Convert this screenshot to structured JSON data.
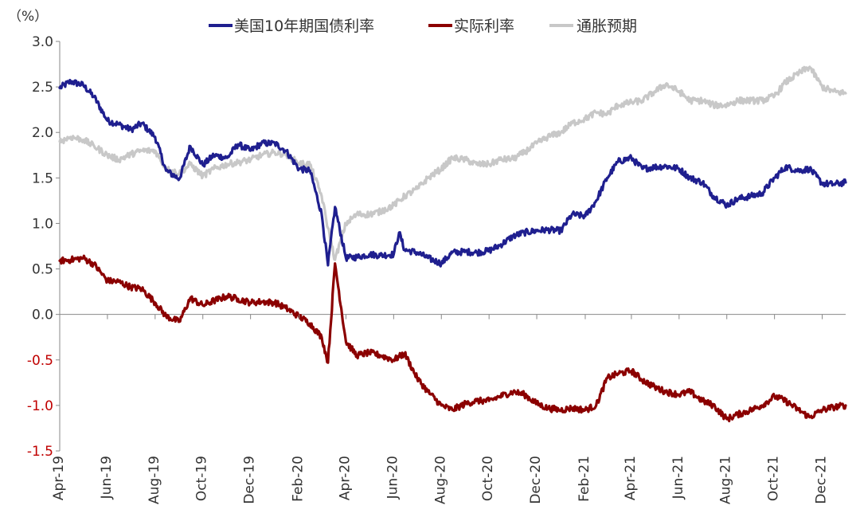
{
  "chart_data": {
    "type": "line",
    "unit_label": "（%）",
    "ylim": [
      -1.5,
      3.0
    ],
    "yticks": [
      "3.0",
      "2.5",
      "2.0",
      "1.5",
      "1.0",
      "0.5",
      "0.0",
      "-0.5",
      "-1.0",
      "-1.5"
    ],
    "ytick_values": [
      3.0,
      2.5,
      2.0,
      1.5,
      1.0,
      0.5,
      0.0,
      -0.5,
      -1.0,
      -1.5
    ],
    "negative_tick_color": "#c00000",
    "positive_tick_color": "#333333",
    "xlim": [
      "2019-04-01",
      "2021-12-31"
    ],
    "xtick_labels": [
      "Apr-19",
      "Jun-19",
      "Aug-19",
      "Oct-19",
      "Dec-19",
      "Feb-20",
      "Apr-20",
      "Jun-20",
      "Aug-20",
      "Oct-20",
      "Dec-20",
      "Feb-21",
      "Apr-21",
      "Jun-21",
      "Aug-21",
      "Oct-21",
      "Dec-21"
    ],
    "xtick_dates": [
      "2019-04-01",
      "2019-06-01",
      "2019-08-01",
      "2019-10-01",
      "2019-12-01",
      "2020-02-01",
      "2020-04-01",
      "2020-06-01",
      "2020-08-01",
      "2020-10-01",
      "2020-12-01",
      "2021-02-01",
      "2021-04-01",
      "2021-06-01",
      "2021-08-01",
      "2021-10-01",
      "2021-12-01"
    ],
    "legend_position": "top",
    "grid": false,
    "series": [
      {
        "name": "美国10年期国债利率",
        "color": "#1f1f8f",
        "points": [
          [
            "2019-04-01",
            2.49
          ],
          [
            "2019-04-15",
            2.56
          ],
          [
            "2019-05-01",
            2.52
          ],
          [
            "2019-05-15",
            2.39
          ],
          [
            "2019-06-01",
            2.13
          ],
          [
            "2019-06-15",
            2.09
          ],
          [
            "2019-07-01",
            2.03
          ],
          [
            "2019-07-15",
            2.1
          ],
          [
            "2019-08-01",
            1.95
          ],
          [
            "2019-08-15",
            1.58
          ],
          [
            "2019-09-01",
            1.49
          ],
          [
            "2019-09-15",
            1.85
          ],
          [
            "2019-10-01",
            1.64
          ],
          [
            "2019-10-15",
            1.75
          ],
          [
            "2019-11-01",
            1.72
          ],
          [
            "2019-11-15",
            1.87
          ],
          [
            "2019-12-01",
            1.8
          ],
          [
            "2019-12-15",
            1.88
          ],
          [
            "2020-01-01",
            1.88
          ],
          [
            "2020-01-15",
            1.8
          ],
          [
            "2020-02-01",
            1.6
          ],
          [
            "2020-02-15",
            1.58
          ],
          [
            "2020-03-01",
            1.1
          ],
          [
            "2020-03-09",
            0.54
          ],
          [
            "2020-03-18",
            1.18
          ],
          [
            "2020-04-01",
            0.62
          ],
          [
            "2020-04-15",
            0.63
          ],
          [
            "2020-05-01",
            0.66
          ],
          [
            "2020-05-15",
            0.65
          ],
          [
            "2020-06-01",
            0.66
          ],
          [
            "2020-06-08",
            0.9
          ],
          [
            "2020-06-15",
            0.71
          ],
          [
            "2020-07-01",
            0.68
          ],
          [
            "2020-07-15",
            0.62
          ],
          [
            "2020-08-01",
            0.56
          ],
          [
            "2020-08-15",
            0.68
          ],
          [
            "2020-09-01",
            0.69
          ],
          [
            "2020-09-15",
            0.68
          ],
          [
            "2020-10-01",
            0.7
          ],
          [
            "2020-10-15",
            0.76
          ],
          [
            "2020-11-01",
            0.86
          ],
          [
            "2020-11-15",
            0.9
          ],
          [
            "2020-12-01",
            0.92
          ],
          [
            "2020-12-15",
            0.93
          ],
          [
            "2021-01-01",
            0.92
          ],
          [
            "2021-01-15",
            1.1
          ],
          [
            "2021-02-01",
            1.08
          ],
          [
            "2021-02-15",
            1.25
          ],
          [
            "2021-03-01",
            1.5
          ],
          [
            "2021-03-15",
            1.68
          ],
          [
            "2021-04-01",
            1.72
          ],
          [
            "2021-04-15",
            1.6
          ],
          [
            "2021-05-01",
            1.62
          ],
          [
            "2021-05-15",
            1.63
          ],
          [
            "2021-06-01",
            1.6
          ],
          [
            "2021-06-15",
            1.5
          ],
          [
            "2021-07-01",
            1.45
          ],
          [
            "2021-07-15",
            1.3
          ],
          [
            "2021-08-01",
            1.2
          ],
          [
            "2021-08-15",
            1.27
          ],
          [
            "2021-09-01",
            1.3
          ],
          [
            "2021-09-15",
            1.33
          ],
          [
            "2021-10-01",
            1.5
          ],
          [
            "2021-10-15",
            1.62
          ],
          [
            "2021-11-01",
            1.58
          ],
          [
            "2021-11-15",
            1.6
          ],
          [
            "2021-12-01",
            1.44
          ],
          [
            "2021-12-15",
            1.43
          ],
          [
            "2021-12-31",
            1.45
          ]
        ]
      },
      {
        "name": "实际利率",
        "color": "#8b0000",
        "points": [
          [
            "2019-04-01",
            0.59
          ],
          [
            "2019-04-15",
            0.6
          ],
          [
            "2019-05-01",
            0.62
          ],
          [
            "2019-05-15",
            0.55
          ],
          [
            "2019-06-01",
            0.37
          ],
          [
            "2019-06-15",
            0.36
          ],
          [
            "2019-07-01",
            0.3
          ],
          [
            "2019-07-15",
            0.28
          ],
          [
            "2019-08-01",
            0.13
          ],
          [
            "2019-08-15",
            -0.02
          ],
          [
            "2019-09-01",
            -0.08
          ],
          [
            "2019-09-15",
            0.18
          ],
          [
            "2019-10-01",
            0.1
          ],
          [
            "2019-10-15",
            0.15
          ],
          [
            "2019-11-01",
            0.2
          ],
          [
            "2019-11-15",
            0.17
          ],
          [
            "2019-12-01",
            0.13
          ],
          [
            "2019-12-15",
            0.14
          ],
          [
            "2020-01-01",
            0.13
          ],
          [
            "2020-01-15",
            0.07
          ],
          [
            "2020-02-01",
            -0.02
          ],
          [
            "2020-02-15",
            -0.1
          ],
          [
            "2020-03-01",
            -0.25
          ],
          [
            "2020-03-09",
            -0.53
          ],
          [
            "2020-03-18",
            0.56
          ],
          [
            "2020-04-01",
            -0.3
          ],
          [
            "2020-04-15",
            -0.45
          ],
          [
            "2020-05-01",
            -0.42
          ],
          [
            "2020-05-15",
            -0.45
          ],
          [
            "2020-06-01",
            -0.5
          ],
          [
            "2020-06-15",
            -0.43
          ],
          [
            "2020-07-01",
            -0.7
          ],
          [
            "2020-07-15",
            -0.85
          ],
          [
            "2020-08-01",
            -1.0
          ],
          [
            "2020-08-15",
            -1.05
          ],
          [
            "2020-09-01",
            -0.98
          ],
          [
            "2020-09-15",
            -0.95
          ],
          [
            "2020-10-01",
            -0.95
          ],
          [
            "2020-10-15",
            -0.9
          ],
          [
            "2020-11-01",
            -0.85
          ],
          [
            "2020-11-15",
            -0.88
          ],
          [
            "2020-12-01",
            -0.98
          ],
          [
            "2020-12-15",
            -1.03
          ],
          [
            "2021-01-01",
            -1.05
          ],
          [
            "2021-01-15",
            -1.03
          ],
          [
            "2021-02-01",
            -1.05
          ],
          [
            "2021-02-15",
            -1.0
          ],
          [
            "2021-03-01",
            -0.7
          ],
          [
            "2021-03-15",
            -0.65
          ],
          [
            "2021-04-01",
            -0.62
          ],
          [
            "2021-04-15",
            -0.72
          ],
          [
            "2021-05-01",
            -0.8
          ],
          [
            "2021-05-15",
            -0.85
          ],
          [
            "2021-06-01",
            -0.88
          ],
          [
            "2021-06-15",
            -0.85
          ],
          [
            "2021-07-01",
            -0.95
          ],
          [
            "2021-07-15",
            -1.0
          ],
          [
            "2021-08-01",
            -1.15
          ],
          [
            "2021-08-15",
            -1.1
          ],
          [
            "2021-09-01",
            -1.05
          ],
          [
            "2021-09-15",
            -1.0
          ],
          [
            "2021-10-01",
            -0.9
          ],
          [
            "2021-10-15",
            -0.95
          ],
          [
            "2021-11-01",
            -1.05
          ],
          [
            "2021-11-15",
            -1.13
          ],
          [
            "2021-12-01",
            -1.05
          ],
          [
            "2021-12-15",
            -1.02
          ],
          [
            "2021-12-31",
            -1.0
          ]
        ]
      },
      {
        "name": "通胀预期",
        "color": "#c8c8c8",
        "points": [
          [
            "2019-04-01",
            1.9
          ],
          [
            "2019-04-15",
            1.95
          ],
          [
            "2019-05-01",
            1.92
          ],
          [
            "2019-05-15",
            1.85
          ],
          [
            "2019-06-01",
            1.75
          ],
          [
            "2019-06-15",
            1.7
          ],
          [
            "2019-07-01",
            1.76
          ],
          [
            "2019-07-15",
            1.8
          ],
          [
            "2019-08-01",
            1.8
          ],
          [
            "2019-08-15",
            1.6
          ],
          [
            "2019-09-01",
            1.55
          ],
          [
            "2019-09-15",
            1.65
          ],
          [
            "2019-10-01",
            1.52
          ],
          [
            "2019-10-15",
            1.6
          ],
          [
            "2019-11-01",
            1.65
          ],
          [
            "2019-11-15",
            1.67
          ],
          [
            "2019-12-01",
            1.7
          ],
          [
            "2019-12-15",
            1.75
          ],
          [
            "2020-01-01",
            1.78
          ],
          [
            "2020-01-15",
            1.76
          ],
          [
            "2020-02-01",
            1.66
          ],
          [
            "2020-02-15",
            1.65
          ],
          [
            "2020-03-01",
            1.3
          ],
          [
            "2020-03-09",
            0.95
          ],
          [
            "2020-03-18",
            0.6
          ],
          [
            "2020-04-01",
            1.0
          ],
          [
            "2020-04-15",
            1.1
          ],
          [
            "2020-05-01",
            1.1
          ],
          [
            "2020-05-15",
            1.13
          ],
          [
            "2020-06-01",
            1.2
          ],
          [
            "2020-06-15",
            1.3
          ],
          [
            "2020-07-01",
            1.38
          ],
          [
            "2020-07-15",
            1.5
          ],
          [
            "2020-08-01",
            1.6
          ],
          [
            "2020-08-15",
            1.72
          ],
          [
            "2020-09-01",
            1.7
          ],
          [
            "2020-09-15",
            1.65
          ],
          [
            "2020-10-01",
            1.65
          ],
          [
            "2020-10-15",
            1.7
          ],
          [
            "2020-11-01",
            1.71
          ],
          [
            "2020-11-15",
            1.78
          ],
          [
            "2020-12-01",
            1.88
          ],
          [
            "2020-12-15",
            1.95
          ],
          [
            "2021-01-01",
            2.0
          ],
          [
            "2021-01-15",
            2.1
          ],
          [
            "2021-02-01",
            2.15
          ],
          [
            "2021-02-15",
            2.22
          ],
          [
            "2021-03-01",
            2.2
          ],
          [
            "2021-03-15",
            2.3
          ],
          [
            "2021-04-01",
            2.33
          ],
          [
            "2021-04-15",
            2.35
          ],
          [
            "2021-05-01",
            2.45
          ],
          [
            "2021-05-15",
            2.53
          ],
          [
            "2021-06-01",
            2.45
          ],
          [
            "2021-06-15",
            2.35
          ],
          [
            "2021-07-01",
            2.35
          ],
          [
            "2021-07-15",
            2.3
          ],
          [
            "2021-08-01",
            2.3
          ],
          [
            "2021-08-15",
            2.35
          ],
          [
            "2021-09-01",
            2.35
          ],
          [
            "2021-09-15",
            2.35
          ],
          [
            "2021-10-01",
            2.4
          ],
          [
            "2021-10-15",
            2.55
          ],
          [
            "2021-11-01",
            2.65
          ],
          [
            "2021-11-15",
            2.72
          ],
          [
            "2021-12-01",
            2.5
          ],
          [
            "2021-12-15",
            2.45
          ],
          [
            "2021-12-31",
            2.43
          ]
        ]
      }
    ]
  }
}
